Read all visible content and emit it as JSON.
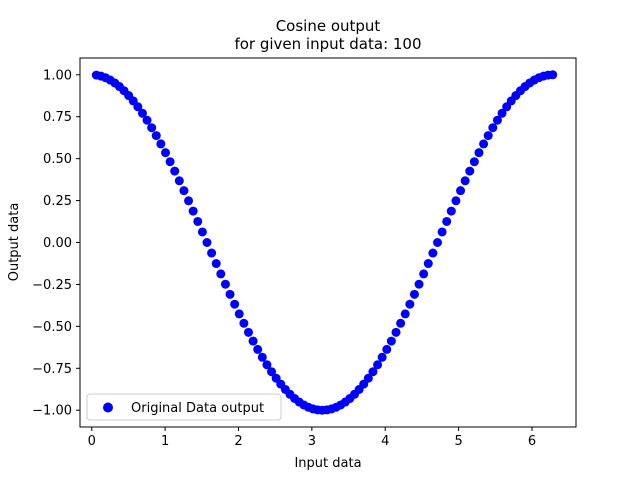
{
  "chart_data": {
    "type": "scatter",
    "title": "Cosine output",
    "subtitle": "for given input data: 100",
    "xlabel": "Input data",
    "ylabel": "Output data",
    "xlim": [
      -0.16,
      6.6
    ],
    "ylim": [
      -1.1,
      1.1
    ],
    "xticks": [
      0,
      1,
      2,
      3,
      4,
      5,
      6
    ],
    "yticks": [
      -1.0,
      -0.75,
      -0.5,
      -0.25,
      0.0,
      0.25,
      0.5,
      0.75,
      1.0
    ],
    "xtick_labels": [
      "0",
      "1",
      "2",
      "3",
      "4",
      "5",
      "6"
    ],
    "ytick_labels": [
      "−1.00",
      "−0.75",
      "−0.50",
      "−0.25",
      "0.00",
      "0.25",
      "0.50",
      "0.75",
      "1.00"
    ],
    "grid": false,
    "legend_position": "lower-left",
    "series": [
      {
        "name": "Original Data output",
        "color": "#0000ff",
        "marker": "circle",
        "x": [
          0.0628,
          0.1257,
          0.1885,
          0.2513,
          0.3142,
          0.377,
          0.4398,
          0.5027,
          0.5655,
          0.6283,
          0.6912,
          0.754,
          0.8168,
          0.8796,
          0.9425,
          1.0053,
          1.0681,
          1.131,
          1.1938,
          1.2566,
          1.3195,
          1.3823,
          1.4451,
          1.508,
          1.5708,
          1.6336,
          1.6965,
          1.7593,
          1.8221,
          1.885,
          1.9478,
          2.0106,
          2.0735,
          2.1363,
          2.1991,
          2.2619,
          2.3248,
          2.3876,
          2.4504,
          2.5133,
          2.5761,
          2.6389,
          2.7018,
          2.7646,
          2.8274,
          2.8903,
          2.9531,
          3.0159,
          3.0788,
          3.1416,
          3.2044,
          3.2673,
          3.3301,
          3.3929,
          3.4558,
          3.5186,
          3.5814,
          3.6442,
          3.7071,
          3.7699,
          3.8327,
          3.8956,
          3.9584,
          4.0212,
          4.0841,
          4.1469,
          4.2097,
          4.2726,
          4.3354,
          4.3982,
          4.4611,
          4.5239,
          4.5867,
          4.6496,
          4.7124,
          4.7752,
          4.8381,
          4.9009,
          4.9637,
          5.0265,
          5.0894,
          5.1522,
          5.215,
          5.2779,
          5.3407,
          5.4035,
          5.4664,
          5.5292,
          5.592,
          5.6549,
          5.7177,
          5.7805,
          5.8434,
          5.9062,
          5.969,
          6.0319,
          6.0947,
          6.1575,
          6.2204,
          6.2832
        ],
        "y": [
          0.998,
          0.9921,
          0.9823,
          0.9686,
          0.9511,
          0.9298,
          0.9048,
          0.8763,
          0.8443,
          0.809,
          0.7705,
          0.729,
          0.6845,
          0.6374,
          0.5878,
          0.5358,
          0.4818,
          0.4258,
          0.3681,
          0.309,
          0.2487,
          0.1874,
          0.1253,
          0.0628,
          0.0,
          -0.0628,
          -0.1253,
          -0.1874,
          -0.2487,
          -0.309,
          -0.3681,
          -0.4258,
          -0.4818,
          -0.5358,
          -0.5878,
          -0.6374,
          -0.6845,
          -0.729,
          -0.7705,
          -0.809,
          -0.8443,
          -0.8763,
          -0.9048,
          -0.9298,
          -0.9511,
          -0.9686,
          -0.9823,
          -0.9921,
          -0.998,
          -1.0,
          -0.998,
          -0.9921,
          -0.9823,
          -0.9686,
          -0.9511,
          -0.9298,
          -0.9048,
          -0.8763,
          -0.8443,
          -0.809,
          -0.7705,
          -0.729,
          -0.6845,
          -0.6374,
          -0.5878,
          -0.5358,
          -0.4818,
          -0.4258,
          -0.3681,
          -0.309,
          -0.2487,
          -0.1874,
          -0.1253,
          -0.0628,
          0.0,
          0.0628,
          0.1253,
          0.1874,
          0.2487,
          0.309,
          0.3681,
          0.4258,
          0.4818,
          0.5358,
          0.5878,
          0.6374,
          0.6845,
          0.729,
          0.7705,
          0.809,
          0.8443,
          0.8763,
          0.9048,
          0.9298,
          0.9511,
          0.9686,
          0.9823,
          0.9921,
          0.998,
          1.0
        ]
      }
    ]
  }
}
